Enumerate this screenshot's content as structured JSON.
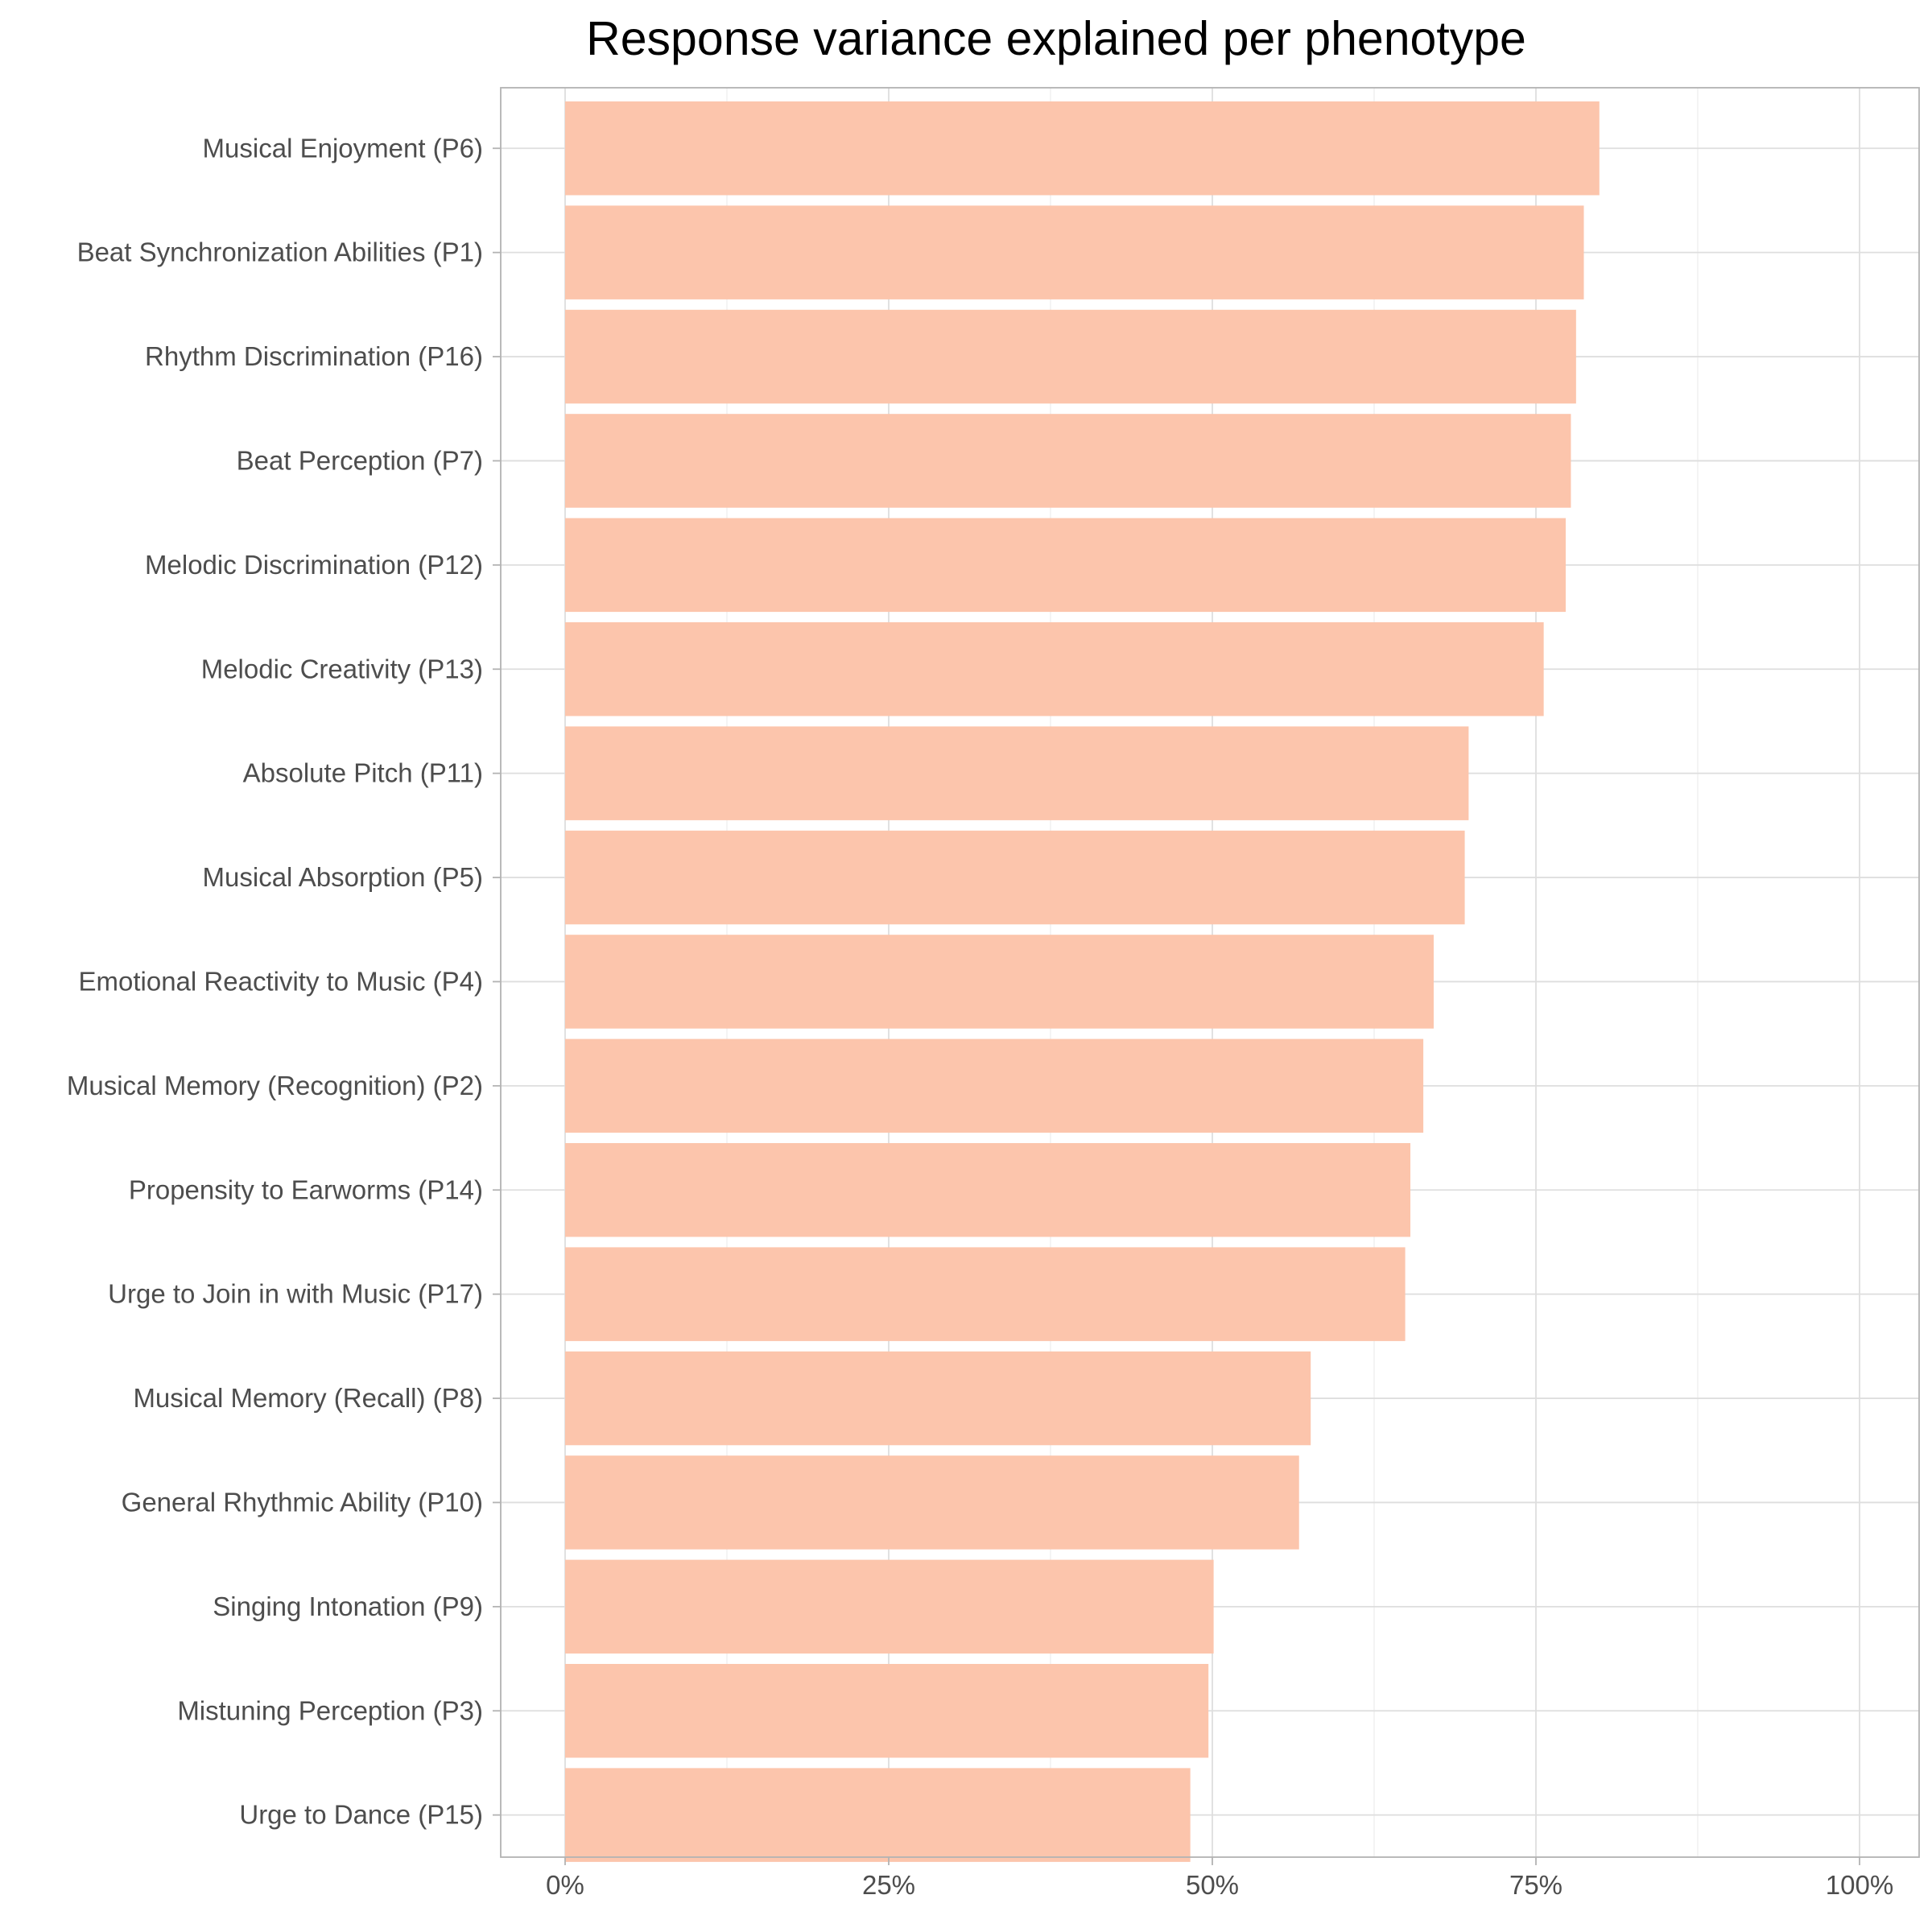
{
  "chart_data": {
    "type": "bar",
    "orientation": "horizontal",
    "title": "Response variance explained per phenotype",
    "xlabel": "",
    "ylabel": "",
    "xlim": [
      0,
      1
    ],
    "x_ticks": [
      0,
      0.25,
      0.5,
      0.75,
      1.0
    ],
    "x_tick_labels": [
      "0%",
      "25%",
      "50%",
      "75%",
      "100%"
    ],
    "grid": true,
    "bar_color": "#FCC5AC",
    "categories": [
      "Musical Enjoyment (P6)",
      "Beat Synchronization Abilities (P1)",
      "Rhythm Discrimination (P16)",
      "Beat Perception (P7)",
      "Melodic Discrimination (P12)",
      "Melodic Creativity (P13)",
      "Absolute Pitch (P11)",
      "Musical Absorption (P5)",
      "Emotional Reactivity to Music (P4)",
      "Musical Memory (Recognition) (P2)",
      "Propensity to Earworms (P14)",
      "Urge to Join in with Music (P17)",
      "Musical Memory (Recall) (P8)",
      "General Rhythmic Ability (P10)",
      "Singing Intonation (P9)",
      "Mistuning Perception (P3)",
      "Urge to Dance (P15)"
    ],
    "values": [
      0.799,
      0.787,
      0.781,
      0.777,
      0.773,
      0.756,
      0.698,
      0.695,
      0.671,
      0.663,
      0.653,
      0.649,
      0.576,
      0.567,
      0.501,
      0.497,
      0.483
    ]
  }
}
